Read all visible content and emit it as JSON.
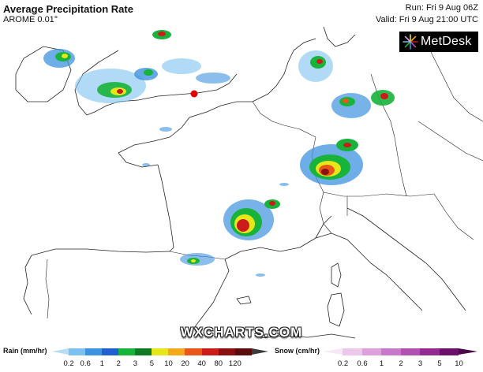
{
  "header": {
    "title": "Average Precipitation Rate",
    "model": "AROME 0.01°",
    "run": "Run: Fri 9 Aug 06Z",
    "valid": "Valid: Fri 9 Aug 21:00 UTC"
  },
  "logo": {
    "text": "MetDesk",
    "icon": "metdesk-burst-icon"
  },
  "watermark": "WXCHARTS.COM",
  "legend": {
    "rain_label": "Rain (mm/hr)",
    "rain_ticks": [
      "0.2",
      "0.6",
      "1",
      "2",
      "3",
      "5",
      "10",
      "20",
      "40",
      "80",
      "120"
    ],
    "rain_colors": [
      "#b7dcf5",
      "#7cc1ef",
      "#3d93e0",
      "#1f5fd0",
      "#18b33a",
      "#0e7a24",
      "#e6e61a",
      "#f5a81c",
      "#e8561a",
      "#cc1b1b",
      "#8a1010",
      "#5a0c0c",
      "#3a3a3a"
    ],
    "snow_label": "Snow (cm/hr)",
    "snow_ticks": [
      "0.2",
      "0.6",
      "1",
      "2",
      "3",
      "5",
      "10"
    ],
    "snow_colors": [
      "#f6e8f6",
      "#ecc8ec",
      "#dda0dd",
      "#c878c8",
      "#b050b0",
      "#922a92",
      "#6a106a",
      "#4a0a4a"
    ]
  },
  "map": {
    "marker_color": "#e00000",
    "coastline_color": "#222222"
  }
}
